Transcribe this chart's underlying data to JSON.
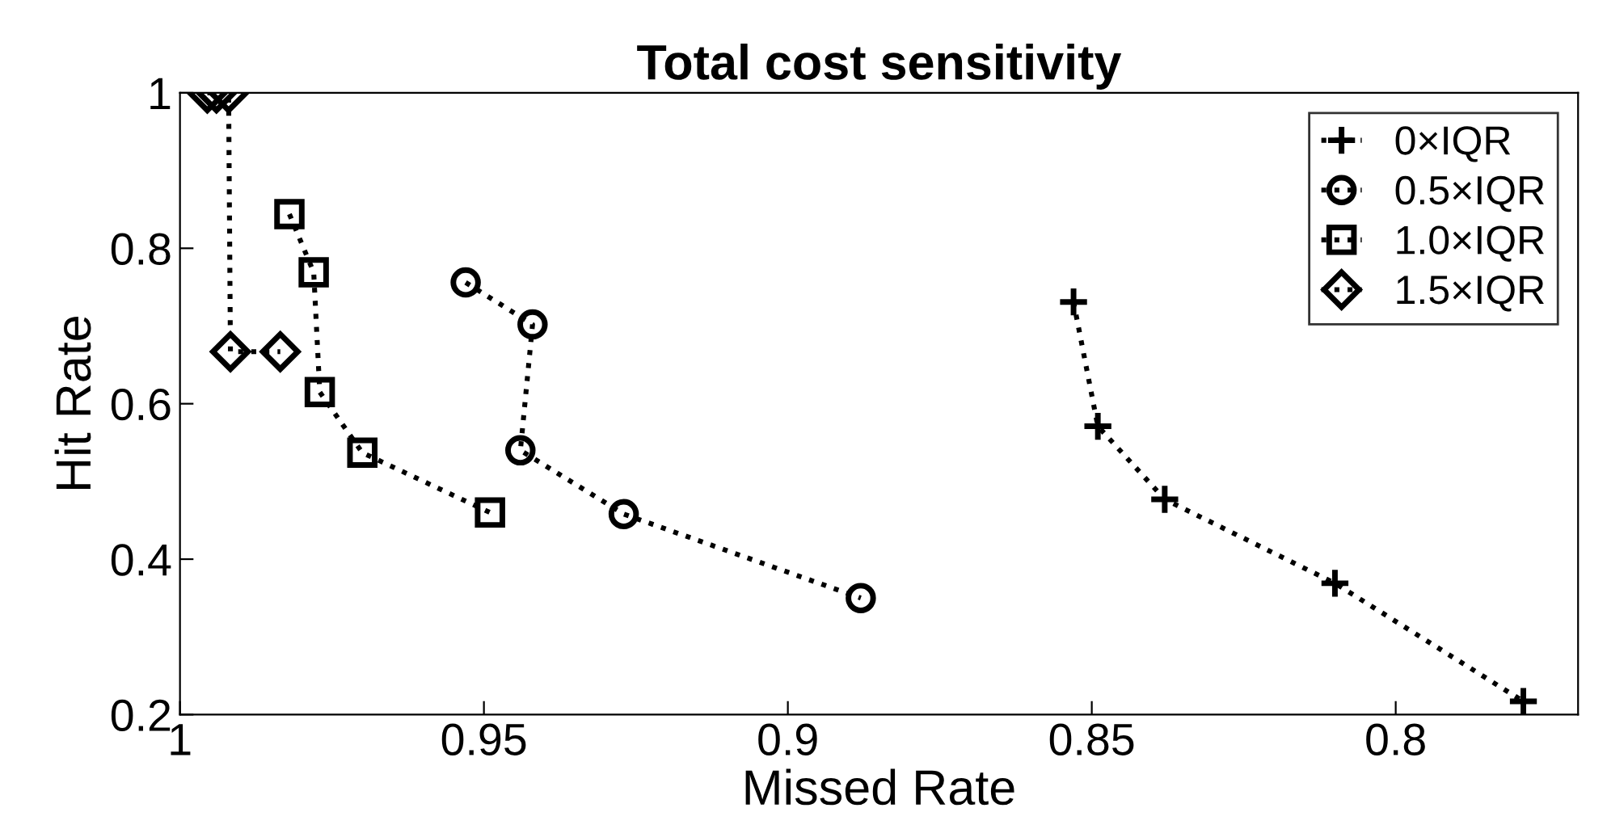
{
  "chart_data": {
    "type": "line",
    "title": "Total cost sensitivity",
    "xlabel": "Missed Rate",
    "ylabel": "Hit Rate",
    "xlim": [
      1,
      0.77
    ],
    "xticks": [
      1,
      0.95,
      0.9,
      0.85,
      0.8
    ],
    "ylim": [
      0.2,
      1
    ],
    "yticks": [
      0.2,
      0.4,
      0.6,
      0.8,
      1
    ],
    "grid": false,
    "legend": "top right",
    "line_style": "dotted",
    "series": [
      {
        "name": "0×IQR",
        "color": "#000000",
        "marker": "cross",
        "x": [
          0.853,
          0.849,
          0.838,
          0.81,
          0.779
        ],
        "values": [
          0.731,
          0.571,
          0.477,
          0.369,
          0.217
        ]
      },
      {
        "name": "0.5×IQR",
        "color": "#000000",
        "marker": "circle",
        "x": [
          0.953,
          0.942,
          0.944,
          0.927,
          0.888
        ],
        "values": [
          0.756,
          0.702,
          0.54,
          0.458,
          0.35
        ]
      },
      {
        "name": "1.0×IQR",
        "color": "#000000",
        "marker": "square",
        "x": [
          0.982,
          0.978,
          0.977,
          0.97,
          0.949
        ],
        "values": [
          0.844,
          0.769,
          0.615,
          0.537,
          0.46
        ]
      },
      {
        "name": "1.5×IQR",
        "color": "#000000",
        "marker": "diamond",
        "x": [
          0.9955,
          0.994,
          0.992,
          0.9917,
          0.9835
        ],
        "values": [
          1,
          1,
          1,
          0.667,
          0.667
        ]
      }
    ]
  }
}
